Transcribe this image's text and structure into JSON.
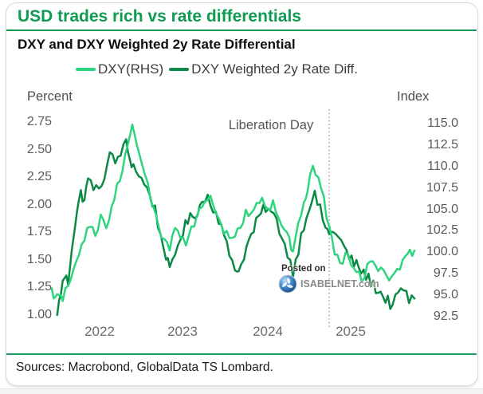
{
  "header": {
    "title": "USD trades rich vs rate differentials"
  },
  "chart_data": {
    "type": "line",
    "title": "DXY and DXY Weighted 2y Rate Differential",
    "grid": false,
    "legend_position": "top",
    "left_axis": {
      "label": "Percent",
      "ylim": [
        1.0,
        2.75
      ],
      "ticks": [
        "2.75",
        "2.50",
        "2.25",
        "2.00",
        "1.75",
        "1.50",
        "1.25",
        "1.00"
      ]
    },
    "right_axis": {
      "label": "Index",
      "ylim": [
        92.5,
        115.0
      ],
      "ticks": [
        "115.0",
        "112.5",
        "110.0",
        "107.5",
        "105.0",
        "102.5",
        "100.0",
        "97.5",
        "95.0",
        "92.5"
      ]
    },
    "x_axis": {
      "ticks": [
        "2022",
        "2023",
        "2024",
        "2025"
      ]
    },
    "annotation": {
      "label": "Liberation Day",
      "x_frac": 0.765
    },
    "series": [
      {
        "name": "DXY(RHS)",
        "axis": "right",
        "color": "#2ed47e",
        "jitter": 0.6,
        "points": [
          [
            0.0,
            95.8
          ],
          [
            0.01,
            94.4
          ],
          [
            0.02,
            95.2
          ],
          [
            0.03,
            94.6
          ],
          [
            0.045,
            96.2
          ],
          [
            0.06,
            97.6
          ],
          [
            0.075,
            99.2
          ],
          [
            0.09,
            101.6
          ],
          [
            0.105,
            103.2
          ],
          [
            0.12,
            102.2
          ],
          [
            0.135,
            104.0
          ],
          [
            0.15,
            103.0
          ],
          [
            0.165,
            105.5
          ],
          [
            0.18,
            107.6
          ],
          [
            0.195,
            109.5
          ],
          [
            0.21,
            112.5
          ],
          [
            0.222,
            115.0
          ],
          [
            0.235,
            112.5
          ],
          [
            0.25,
            110.5
          ],
          [
            0.265,
            107.8
          ],
          [
            0.28,
            105.0
          ],
          [
            0.295,
            102.8
          ],
          [
            0.31,
            101.4
          ],
          [
            0.325,
            100.6
          ],
          [
            0.34,
            103.2
          ],
          [
            0.355,
            102.0
          ],
          [
            0.37,
            101.2
          ],
          [
            0.385,
            102.6
          ],
          [
            0.4,
            104.0
          ],
          [
            0.415,
            105.8
          ],
          [
            0.43,
            106.6
          ],
          [
            0.445,
            105.6
          ],
          [
            0.46,
            104.2
          ],
          [
            0.475,
            102.6
          ],
          [
            0.49,
            101.2
          ],
          [
            0.505,
            102.4
          ],
          [
            0.52,
            103.4
          ],
          [
            0.535,
            104.4
          ],
          [
            0.55,
            104.0
          ],
          [
            0.565,
            105.2
          ],
          [
            0.58,
            106.0
          ],
          [
            0.595,
            104.6
          ],
          [
            0.61,
            105.6
          ],
          [
            0.625,
            104.2
          ],
          [
            0.64,
            102.6
          ],
          [
            0.655,
            101.2
          ],
          [
            0.665,
            100.4
          ],
          [
            0.68,
            103.0
          ],
          [
            0.695,
            105.8
          ],
          [
            0.705,
            107.6
          ],
          [
            0.72,
            109.6
          ],
          [
            0.735,
            108.4
          ],
          [
            0.75,
            106.0
          ],
          [
            0.765,
            102.6
          ],
          [
            0.78,
            100.0
          ],
          [
            0.795,
            98.6
          ],
          [
            0.81,
            99.6
          ],
          [
            0.825,
            98.8
          ],
          [
            0.84,
            97.8
          ],
          [
            0.855,
            96.8
          ],
          [
            0.87,
            98.2
          ],
          [
            0.885,
            99.0
          ],
          [
            0.9,
            97.8
          ],
          [
            0.915,
            98.4
          ],
          [
            0.93,
            97.2
          ],
          [
            0.945,
            97.8
          ],
          [
            0.96,
            98.4
          ],
          [
            0.975,
            99.2
          ],
          [
            1.0,
            100.2
          ]
        ]
      },
      {
        "name": "DXY Weighted 2y Rate Diff.",
        "axis": "left",
        "color": "#0c8a45",
        "jitter": 0.055,
        "points": [
          [
            0.015,
            1.0
          ],
          [
            0.025,
            1.22
          ],
          [
            0.035,
            1.35
          ],
          [
            0.045,
            1.3
          ],
          [
            0.055,
            1.62
          ],
          [
            0.07,
            1.95
          ],
          [
            0.08,
            2.1
          ],
          [
            0.09,
            2.05
          ],
          [
            0.1,
            2.22
          ],
          [
            0.115,
            2.18
          ],
          [
            0.13,
            2.1
          ],
          [
            0.145,
            2.28
          ],
          [
            0.16,
            2.45
          ],
          [
            0.175,
            2.38
          ],
          [
            0.19,
            2.48
          ],
          [
            0.205,
            2.55
          ],
          [
            0.215,
            2.42
          ],
          [
            0.225,
            2.35
          ],
          [
            0.24,
            2.28
          ],
          [
            0.255,
            2.18
          ],
          [
            0.27,
            2.1
          ],
          [
            0.285,
            1.95
          ],
          [
            0.3,
            1.72
          ],
          [
            0.315,
            1.55
          ],
          [
            0.325,
            1.38
          ],
          [
            0.34,
            1.55
          ],
          [
            0.355,
            1.72
          ],
          [
            0.375,
            1.85
          ],
          [
            0.395,
            1.92
          ],
          [
            0.415,
            2.02
          ],
          [
            0.43,
            2.08
          ],
          [
            0.445,
            1.98
          ],
          [
            0.46,
            1.88
          ],
          [
            0.475,
            1.7
          ],
          [
            0.49,
            1.55
          ],
          [
            0.505,
            1.45
          ],
          [
            0.515,
            1.38
          ],
          [
            0.53,
            1.55
          ],
          [
            0.55,
            1.72
          ],
          [
            0.57,
            1.88
          ],
          [
            0.59,
            1.98
          ],
          [
            0.605,
            1.92
          ],
          [
            0.62,
            1.85
          ],
          [
            0.635,
            1.72
          ],
          [
            0.65,
            1.55
          ],
          [
            0.665,
            1.4
          ],
          [
            0.68,
            1.6
          ],
          [
            0.695,
            1.82
          ],
          [
            0.71,
            2.0
          ],
          [
            0.725,
            2.08
          ],
          [
            0.74,
            1.95
          ],
          [
            0.755,
            1.8
          ],
          [
            0.765,
            1.72
          ],
          [
            0.775,
            1.78
          ],
          [
            0.79,
            1.7
          ],
          [
            0.805,
            1.62
          ],
          [
            0.82,
            1.52
          ],
          [
            0.84,
            1.45
          ],
          [
            0.86,
            1.38
          ],
          [
            0.88,
            1.3
          ],
          [
            0.9,
            1.22
          ],
          [
            0.92,
            1.15
          ],
          [
            0.94,
            1.08
          ],
          [
            0.955,
            1.18
          ],
          [
            0.97,
            1.25
          ],
          [
            0.985,
            1.12
          ],
          [
            1.0,
            1.15
          ]
        ]
      }
    ]
  },
  "watermark": {
    "prefix": "Posted on",
    "site": "ISABELNET.com"
  },
  "footer": {
    "sources": "Sources: Macrobond, GlobalData TS Lombard."
  },
  "colors": {
    "accent_green": "#0f9b52",
    "light_series": "#2ed47e",
    "dark_series": "#0c8a45"
  }
}
